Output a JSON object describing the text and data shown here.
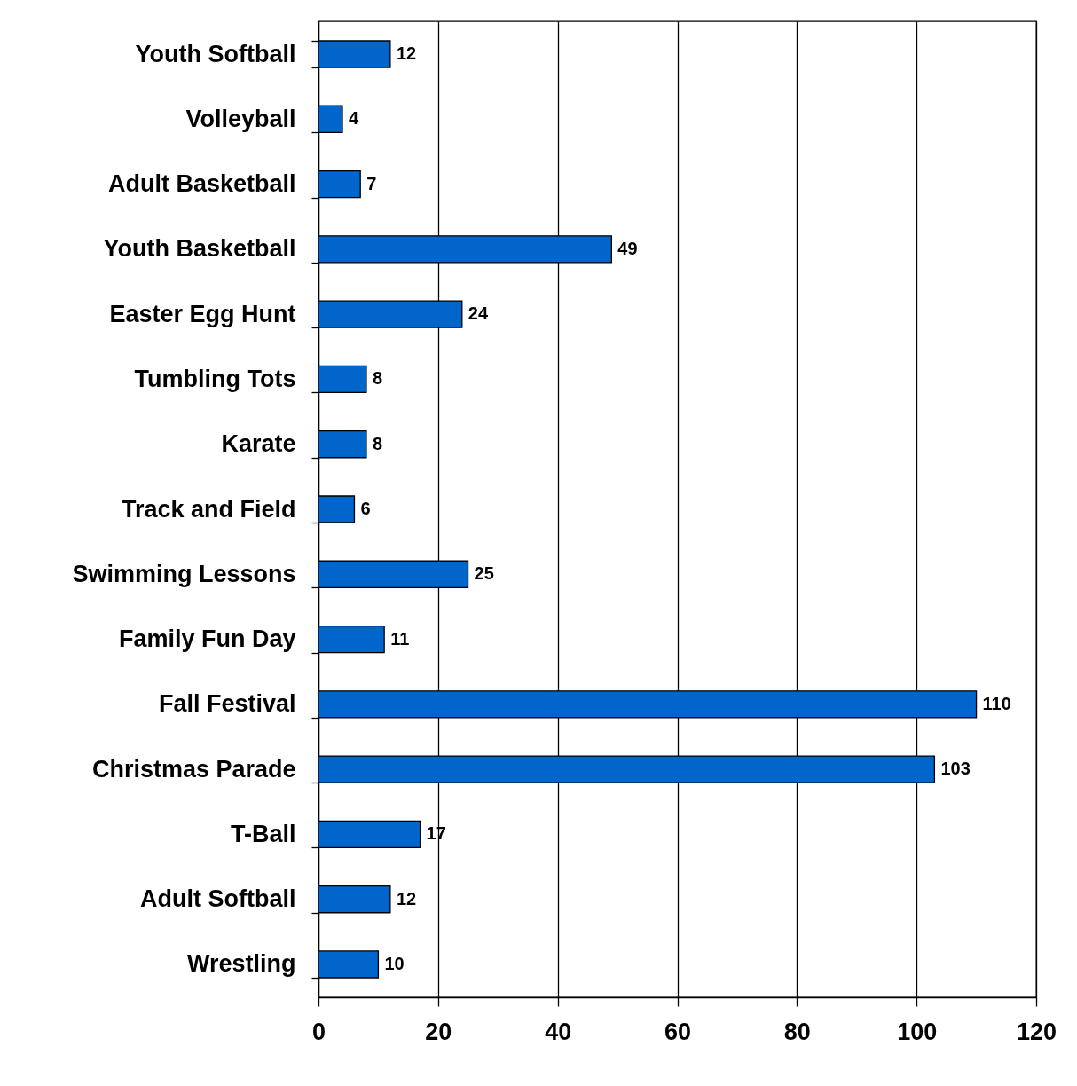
{
  "chart_data": {
    "type": "bar",
    "orientation": "horizontal",
    "categories": [
      "Youth Softball",
      "Volleyball",
      "Adult Basketball",
      "Youth Basketball",
      "Easter Egg Hunt",
      "Tumbling Tots",
      "Karate",
      "Track and Field",
      "Swimming Lessons",
      "Family Fun Day",
      "Fall Festival",
      "Christmas Parade",
      "T-Ball",
      "Adult Softball",
      "Wrestling"
    ],
    "values": [
      12,
      4,
      7,
      49,
      24,
      8,
      8,
      6,
      25,
      11,
      110,
      103,
      17,
      12,
      10
    ],
    "color": "#0066cc",
    "xlim": [
      0,
      120
    ],
    "xticks": [
      0,
      20,
      40,
      60,
      80,
      100,
      120
    ],
    "grid": "x",
    "data_labels": true
  }
}
